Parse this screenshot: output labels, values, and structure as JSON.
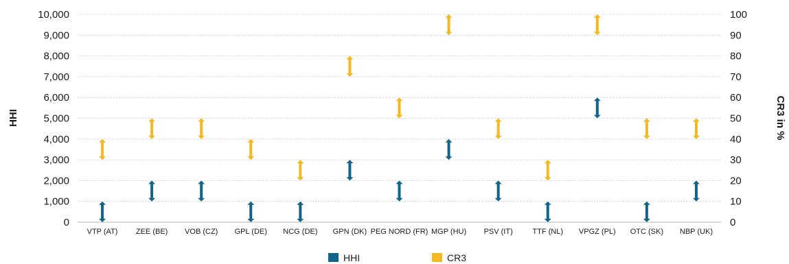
{
  "chart_data": {
    "type": "range",
    "categories": [
      "VTP (AT)",
      "ZEE (BE)",
      "VOB (CZ)",
      "GPL (DE)",
      "NCG (DE)",
      "GPN (DK)",
      "PEG NORD (FR)",
      "MGP (HU)",
      "PSV (IT)",
      "TTF (NL)",
      "VPGZ (PL)",
      "OTC (SK)",
      "NBP (UK)"
    ],
    "series": [
      {
        "name": "HHI",
        "axis": "left",
        "color": "#11648a",
        "ranges": [
          [
            0,
            1000
          ],
          [
            1000,
            2000
          ],
          [
            1000,
            2000
          ],
          [
            0,
            1000
          ],
          [
            0,
            1000
          ],
          [
            2000,
            3000
          ],
          [
            1000,
            2000
          ],
          [
            3000,
            4000
          ],
          [
            1000,
            2000
          ],
          [
            0,
            1000
          ],
          [
            5000,
            6000
          ],
          [
            0,
            1000
          ],
          [
            1000,
            2000
          ]
        ]
      },
      {
        "name": "CR3",
        "axis": "right",
        "color": "#f5b820",
        "ranges": [
          [
            30,
            40
          ],
          [
            40,
            50
          ],
          [
            40,
            50
          ],
          [
            30,
            40
          ],
          [
            20,
            30
          ],
          [
            70,
            80
          ],
          [
            50,
            60
          ],
          [
            90,
            100
          ],
          [
            40,
            50
          ],
          [
            20,
            30
          ],
          [
            90,
            100
          ],
          [
            40,
            50
          ],
          [
            40,
            50
          ]
        ]
      }
    ],
    "ylabel_left": "HHI",
    "ylabel_right": "CR3 in %",
    "ylim_left": [
      0,
      10000
    ],
    "ylim_right": [
      0,
      100
    ],
    "yticks_left": [
      "0",
      "1,000",
      "2,000",
      "3,000",
      "4,000",
      "5,000",
      "6,000",
      "7,000",
      "8,000",
      "9,000",
      "10,000"
    ],
    "yticks_right": [
      "0",
      "10",
      "20",
      "30",
      "40",
      "50",
      "60",
      "70",
      "80",
      "90",
      "100"
    ],
    "grid": true,
    "legend_position": "bottom"
  }
}
